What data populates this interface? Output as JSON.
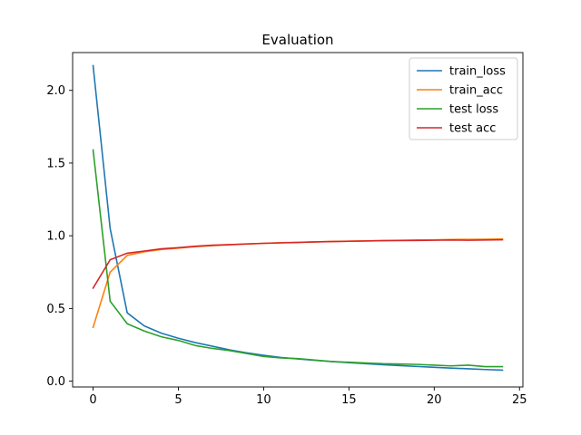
{
  "chart_data": {
    "type": "line",
    "title": "Evaluation",
    "xlabel": "",
    "ylabel": "",
    "xlim": [
      -1.2,
      25.2
    ],
    "ylim": [
      -0.04,
      2.26
    ],
    "xticks": [
      0,
      5,
      10,
      15,
      20,
      25
    ],
    "xtick_labels": [
      "0",
      "5",
      "10",
      "15",
      "20",
      "25"
    ],
    "yticks": [
      0.0,
      0.5,
      1.0,
      1.5,
      2.0
    ],
    "ytick_labels": [
      "0.0",
      "0.5",
      "1.0",
      "1.5",
      "2.0"
    ],
    "grid": false,
    "legend_position": "top-right",
    "x": [
      0,
      1,
      2,
      3,
      4,
      5,
      6,
      7,
      8,
      9,
      10,
      11,
      12,
      13,
      14,
      15,
      16,
      17,
      18,
      19,
      20,
      21,
      22,
      23,
      24
    ],
    "series": [
      {
        "name": "train_loss",
        "color": "#1f77b4",
        "values": [
          2.17,
          1.05,
          0.47,
          0.38,
          0.33,
          0.295,
          0.265,
          0.24,
          0.215,
          0.195,
          0.178,
          0.163,
          0.153,
          0.143,
          0.135,
          0.127,
          0.12,
          0.113,
          0.107,
          0.101,
          0.095,
          0.09,
          0.085,
          0.08,
          0.076
        ]
      },
      {
        "name": "train_acc",
        "color": "#ff7f0e",
        "values": [
          0.37,
          0.75,
          0.865,
          0.89,
          0.905,
          0.915,
          0.925,
          0.932,
          0.938,
          0.943,
          0.948,
          0.952,
          0.955,
          0.958,
          0.961,
          0.963,
          0.965,
          0.967,
          0.969,
          0.971,
          0.972,
          0.974,
          0.975,
          0.976,
          0.978
        ]
      },
      {
        "name": "test loss",
        "color": "#2ca02c",
        "values": [
          1.59,
          0.55,
          0.395,
          0.345,
          0.305,
          0.28,
          0.245,
          0.225,
          0.21,
          0.19,
          0.17,
          0.16,
          0.155,
          0.145,
          0.135,
          0.13,
          0.125,
          0.12,
          0.118,
          0.115,
          0.11,
          0.105,
          0.11,
          0.1,
          0.1
        ]
      },
      {
        "name": "test acc",
        "color": "#d62728",
        "values": [
          0.64,
          0.835,
          0.88,
          0.895,
          0.91,
          0.918,
          0.928,
          0.935,
          0.939,
          0.944,
          0.948,
          0.951,
          0.954,
          0.958,
          0.96,
          0.962,
          0.964,
          0.966,
          0.967,
          0.968,
          0.969,
          0.971,
          0.969,
          0.971,
          0.972
        ]
      }
    ]
  }
}
